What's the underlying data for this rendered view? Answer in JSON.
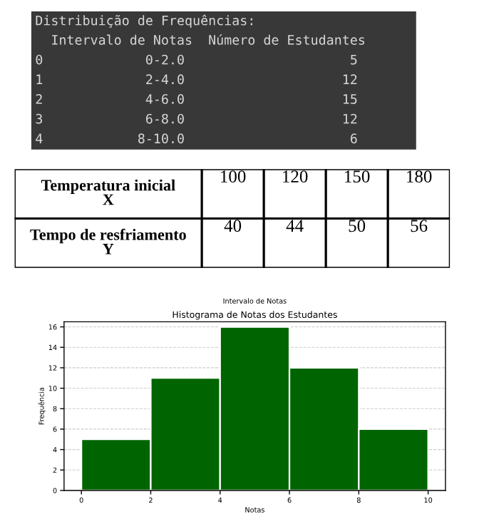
{
  "chart_data": [
    {
      "type": "other",
      "title": "Distribuição de Frequências:",
      "annotations": [
        "  Intervalo de Notas  Número de Estudantes",
        "0             0-2.0                     5",
        "1             2-4.0                    12",
        "2             4-6.0                    15",
        "3             6-8.0                    12",
        "4            8-10.0                     6"
      ]
    },
    {
      "type": "other",
      "xlabel": "Temperatura inicial X",
      "categories": [
        "100",
        "120",
        "150",
        "180"
      ],
      "series": [
        {
          "name": "Tempo de resfriamento Y",
          "values": [
            40,
            44,
            50,
            56
          ]
        }
      ],
      "data_labels": true
    },
    {
      "type": "histogram",
      "title": "Histograma de Notas dos Estudantes",
      "xlabel": "Notas",
      "ylabel": "Frequência",
      "annotations": [
        "Intervalo de Notas"
      ],
      "bins": [
        0,
        2,
        4,
        6,
        8,
        10
      ],
      "values": [
        5,
        11,
        16,
        12,
        6
      ],
      "color": "#006400",
      "xlim": [
        -0.5,
        10.5
      ],
      "ylim": [
        0,
        16.5
      ],
      "xticks": [
        0,
        2,
        4,
        6,
        8,
        10
      ],
      "yticks": [
        0,
        2,
        4,
        6,
        8,
        10,
        12,
        14,
        16
      ],
      "grid": "y"
    }
  ]
}
